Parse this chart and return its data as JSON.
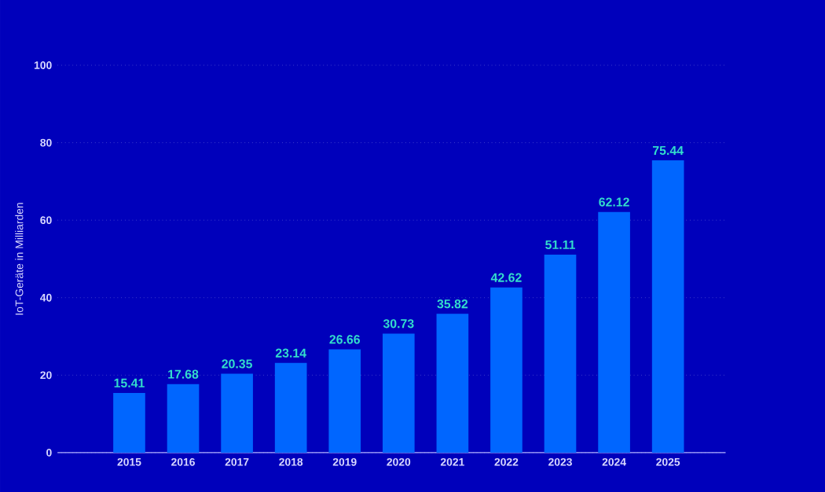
{
  "chart_data": {
    "type": "bar",
    "ylabel": "IoT-Geräte in Milliarden",
    "categories": [
      "2015",
      "2016",
      "2017",
      "2018",
      "2019",
      "2020",
      "2021",
      "2022",
      "2023",
      "2024",
      "2025"
    ],
    "values": [
      15.41,
      17.68,
      20.35,
      23.14,
      26.66,
      30.73,
      35.82,
      42.62,
      51.11,
      62.12,
      75.44
    ],
    "color": "#0066ff",
    "ylim": [
      0,
      100
    ],
    "yticks": [
      0,
      20,
      40,
      60,
      80,
      100
    ],
    "grid": "y",
    "data_labels": true
  }
}
